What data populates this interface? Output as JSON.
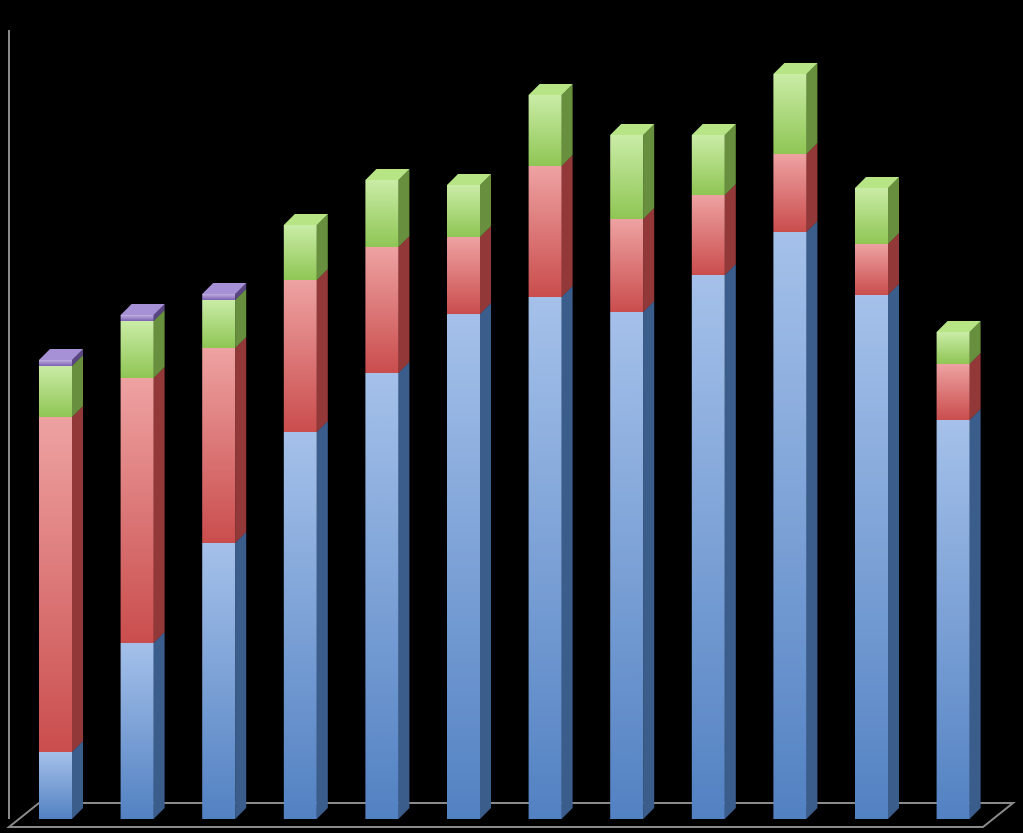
{
  "chart_data": {
    "type": "bar",
    "stacked": true,
    "three_d": true,
    "title": "",
    "xlabel": "",
    "ylabel": "",
    "categories": [
      "",
      "",
      "",
      "",
      "",
      "",
      "",
      "",
      "",
      "",
      "",
      ""
    ],
    "ylim": [
      0,
      795
    ],
    "grid": false,
    "legend": "none",
    "background": "#000000",
    "series": [
      {
        "color": "#5b8fd8",
        "values": [
          67,
          176,
          276,
          387,
          446,
          505,
          522,
          507,
          544,
          587,
          524,
          399
        ]
      },
      {
        "color": "#e05656",
        "values": [
          335,
          265,
          195,
          152,
          126,
          77,
          131,
          93,
          80,
          78,
          51,
          56
        ]
      },
      {
        "color": "#9fdc5e",
        "values": [
          51,
          57,
          48,
          55,
          67,
          52,
          71,
          84,
          60,
          80,
          56,
          32
        ]
      },
      {
        "color": "#8a6cc8",
        "values": [
          6,
          6,
          6,
          0,
          0,
          0,
          0,
          0,
          0,
          0,
          0,
          0
        ]
      }
    ]
  }
}
